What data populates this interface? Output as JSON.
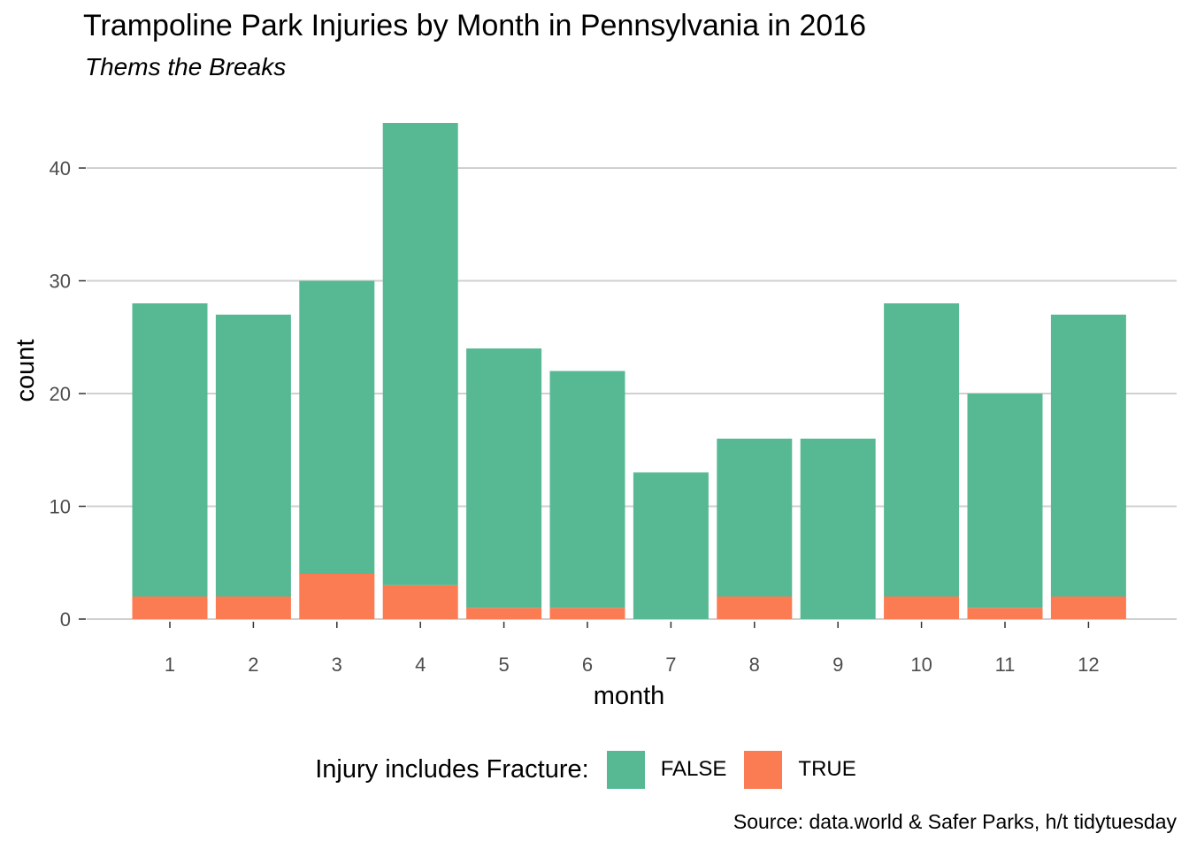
{
  "chart_data": {
    "type": "bar",
    "stacked": true,
    "title": "Trampoline Park Injuries by Month in Pennsylvania in 2016",
    "subtitle": "Thems the Breaks",
    "caption": "Source: data.world & Safer Parks, h/t  tidytuesday",
    "xlabel": "month",
    "ylabel": "count",
    "categories": [
      "1",
      "2",
      "3",
      "4",
      "5",
      "6",
      "7",
      "8",
      "9",
      "10",
      "11",
      "12"
    ],
    "series": [
      {
        "name": "FALSE",
        "color": "#57b994",
        "values": [
          26,
          25,
          26,
          41,
          23,
          21,
          13,
          14,
          16,
          26,
          19,
          25
        ]
      },
      {
        "name": "TRUE",
        "color": "#fb7b52",
        "values": [
          2,
          2,
          4,
          3,
          1,
          1,
          0,
          2,
          0,
          2,
          1,
          2
        ]
      }
    ],
    "ylim": [
      0,
      45
    ],
    "yticks": [
      0,
      10,
      20,
      30,
      40
    ],
    "grid": "horizontal",
    "legend": {
      "title": "Injury includes Fracture:",
      "position": "bottom"
    }
  }
}
